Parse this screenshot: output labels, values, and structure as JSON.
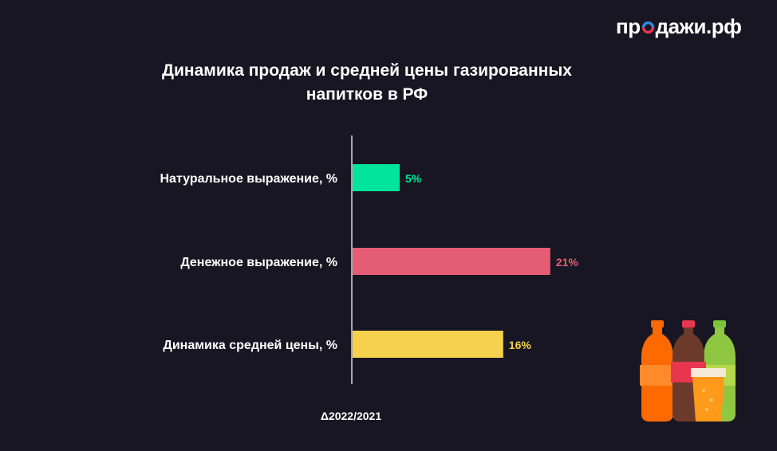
{
  "logo": {
    "part1": "пр",
    "part2": "дажи.рф"
  },
  "chart_data": {
    "type": "bar",
    "orientation": "horizontal",
    "title": [
      "Динамика продаж и средней цены газированных",
      "напитков в РФ"
    ],
    "xlabel": "Δ2022/2021",
    "categories": [
      "Натуральное выражение, %",
      "Денежное выражение, %",
      "Динамика средней цены, %"
    ],
    "values": [
      5,
      21,
      16
    ],
    "value_labels": [
      "5%",
      "21%",
      "16%"
    ],
    "colors": [
      "#00e59b",
      "#e35d74",
      "#f5d14e"
    ],
    "xlim": [
      0,
      25
    ],
    "grid": false,
    "legend": false
  },
  "illustration": {
    "icon": "soda-bottles-icon",
    "colors": [
      "#ff6a00",
      "#6b3a2a",
      "#8fc742",
      "#ff9a1a"
    ]
  }
}
